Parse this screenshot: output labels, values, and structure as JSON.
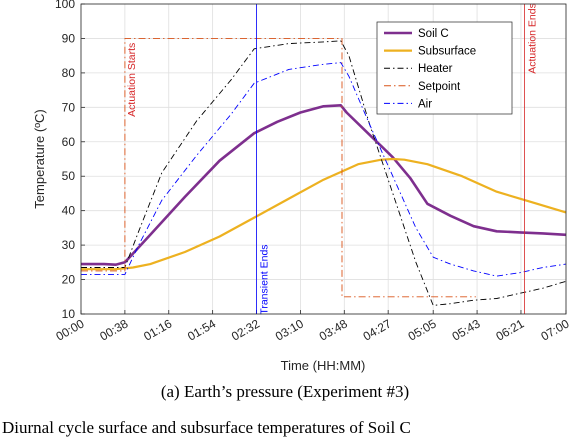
{
  "caption": "(a) Earth’s pressure (Experiment #3)",
  "caption_cut": "Diurnal cycle surface and subsurface temperatures of Soil C",
  "chart_data": {
    "type": "line",
    "xlabel": "Time (HH:MM)",
    "ylabel": "Temperature (ºC)",
    "xlim": [
      0,
      420
    ],
    "ylim": [
      10,
      100
    ],
    "x_ticks": [
      {
        "v": 0,
        "label": "00:00"
      },
      {
        "v": 38,
        "label": "00:38"
      },
      {
        "v": 76,
        "label": "01:16"
      },
      {
        "v": 114,
        "label": "01:54"
      },
      {
        "v": 152,
        "label": "02:32"
      },
      {
        "v": 190,
        "label": "03:10"
      },
      {
        "v": 228,
        "label": "03:48"
      },
      {
        "v": 266,
        "label": "04:27"
      },
      {
        "v": 305,
        "label": "05:05"
      },
      {
        "v": 343,
        "label": "05:43"
      },
      {
        "v": 381,
        "label": "06:21"
      },
      {
        "v": 420,
        "label": "07:00"
      }
    ],
    "y_ticks": [
      10,
      20,
      30,
      40,
      50,
      60,
      70,
      80,
      90,
      100
    ],
    "grid": true,
    "legend_position": "top-right",
    "series": [
      {
        "name": "Soil C",
        "color": "#7E2F8E",
        "dash": "solid",
        "width": 2.6,
        "x": [
          0,
          20,
          30,
          38,
          60,
          90,
          120,
          150,
          170,
          190,
          210,
          225,
          230,
          250,
          270,
          285,
          300,
          320,
          340,
          360,
          380,
          400,
          420
        ],
        "y": [
          24.5,
          24.5,
          24.3,
          25,
          33,
          44,
          54.5,
          62.5,
          65.8,
          68.5,
          70.3,
          70.6,
          68.5,
          62,
          55.5,
          49.5,
          42,
          38.5,
          35.5,
          34,
          33.7,
          33.4,
          33
        ]
      },
      {
        "name": "Subsurface",
        "color": "#EDB120",
        "dash": "solid",
        "width": 2.2,
        "x": [
          0,
          30,
          45,
          60,
          90,
          120,
          150,
          180,
          210,
          240,
          260,
          270,
          280,
          300,
          330,
          360,
          390,
          420
        ],
        "y": [
          23,
          23,
          23.5,
          24.5,
          28,
          32.5,
          38,
          43.5,
          49,
          53.5,
          54.8,
          55,
          54.8,
          53.5,
          50,
          45.5,
          42.5,
          39.5
        ]
      },
      {
        "name": "Heater",
        "color": "#000000",
        "dash": "6,3,1.5,3",
        "width": 0.9,
        "x": [
          0,
          20,
          38,
          50,
          70,
          100,
          130,
          150,
          180,
          210,
          225,
          232,
          250,
          270,
          290,
          305,
          320,
          340,
          360,
          380,
          400,
          420
        ],
        "y": [
          23.5,
          23.5,
          23.5,
          34,
          51,
          66,
          78,
          87,
          88.5,
          89,
          89.3,
          85,
          65,
          45,
          25,
          12.5,
          13,
          14,
          14.5,
          16,
          17.5,
          19.5
        ]
      },
      {
        "name": "Setpoint",
        "color": "#D95319",
        "dash": "7,3,1.5,3",
        "width": 0.9,
        "x": [
          0,
          38,
          38,
          226,
          226,
          342,
          342
        ],
        "y": [
          22.5,
          22.5,
          90,
          90,
          15,
          15,
          15
        ]
      },
      {
        "name": "Air",
        "color": "#0000FF",
        "dash": "6,3,1.5,3",
        "width": 0.9,
        "x": [
          0,
          20,
          38,
          50,
          70,
          100,
          130,
          150,
          180,
          210,
          225,
          232,
          250,
          270,
          290,
          305,
          320,
          340,
          360,
          380,
          400,
          420
        ],
        "y": [
          21.5,
          21.5,
          21.5,
          30,
          43,
          56,
          68,
          77,
          81,
          82.5,
          83,
          79,
          65,
          50,
          35,
          26.5,
          24.5,
          22.5,
          21,
          22,
          23.5,
          24.5
        ]
      }
    ],
    "annotations": [
      {
        "x": 38,
        "y": 78,
        "text": "Actuation Starts",
        "color": "#D62728",
        "vertical_line": false
      },
      {
        "x": 152,
        "y": 20,
        "text": "Transient Ends",
        "color": "#0000FF",
        "vertical_line": true
      },
      {
        "x": 384,
        "y": 90,
        "text": "Actuation Ends",
        "color": "#D62728",
        "vertical_line": true
      }
    ]
  }
}
